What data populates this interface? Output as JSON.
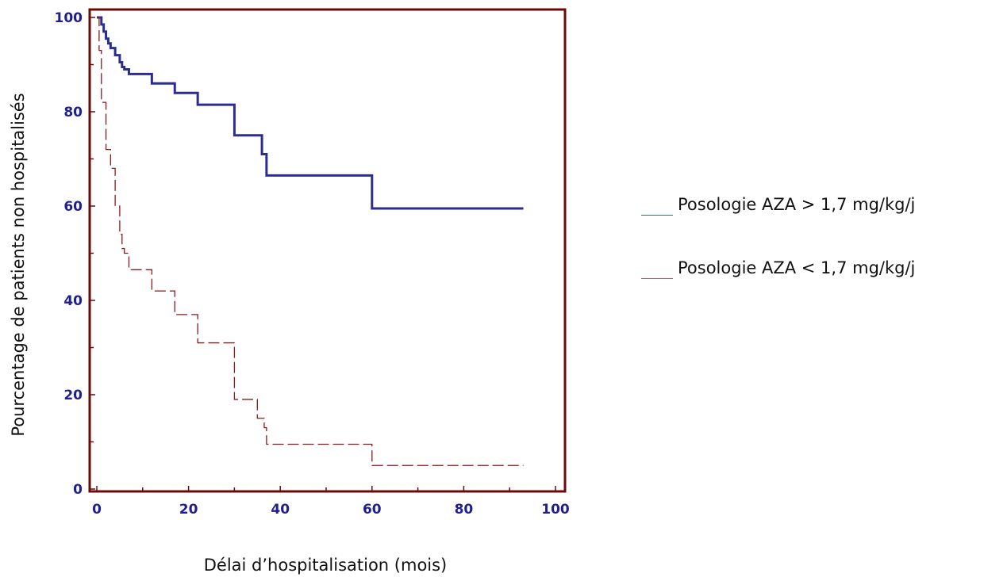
{
  "chart_data": {
    "type": "line",
    "title": "",
    "xlabel": "Délai d’hospitalisation (mois)",
    "ylabel": "Pourcentage de patients non hospitalisés",
    "xlim": [
      0,
      100
    ],
    "ylim": [
      0,
      100
    ],
    "x_ticks": [
      "0",
      "20",
      "40",
      "60",
      "80",
      "100"
    ],
    "y_ticks": [
      "0",
      "20",
      "40",
      "60",
      "80",
      "100"
    ],
    "grid": false,
    "legend_position": "right",
    "frame_color": "#6b0a0a",
    "tick_label_color": "#1f1f8f",
    "series": [
      {
        "name": "Posologie AZA > 1,7 mg/kg/j",
        "color": "#2b2d91",
        "legend_color": "#2e6da4",
        "style": "solid",
        "x": [
          0,
          1,
          1.5,
          2,
          2.5,
          3,
          4,
          5,
          5.5,
          6,
          7,
          12,
          17,
          22,
          30,
          36,
          37,
          60,
          93
        ],
        "y": [
          100,
          98.5,
          97,
          95.5,
          94.5,
          93.5,
          92,
          90.5,
          89.5,
          89,
          88,
          86,
          84,
          81.5,
          75,
          71,
          66.5,
          59.5,
          59.5
        ]
      },
      {
        "name": "Posologie AZA < 1,7 mg/kg/j",
        "color": "#8b1a1a",
        "legend_color": "#c0504d",
        "style": "dashed",
        "x": [
          0,
          0.5,
          1,
          2,
          3,
          4,
          5,
          5.5,
          6,
          7,
          12,
          17,
          22,
          30,
          35,
          36.5,
          37,
          60,
          93
        ],
        "y": [
          100,
          93,
          82,
          72,
          68,
          60,
          54,
          51,
          50,
          46.5,
          42,
          37,
          31,
          19,
          15,
          13,
          9.5,
          5,
          5
        ]
      }
    ]
  }
}
